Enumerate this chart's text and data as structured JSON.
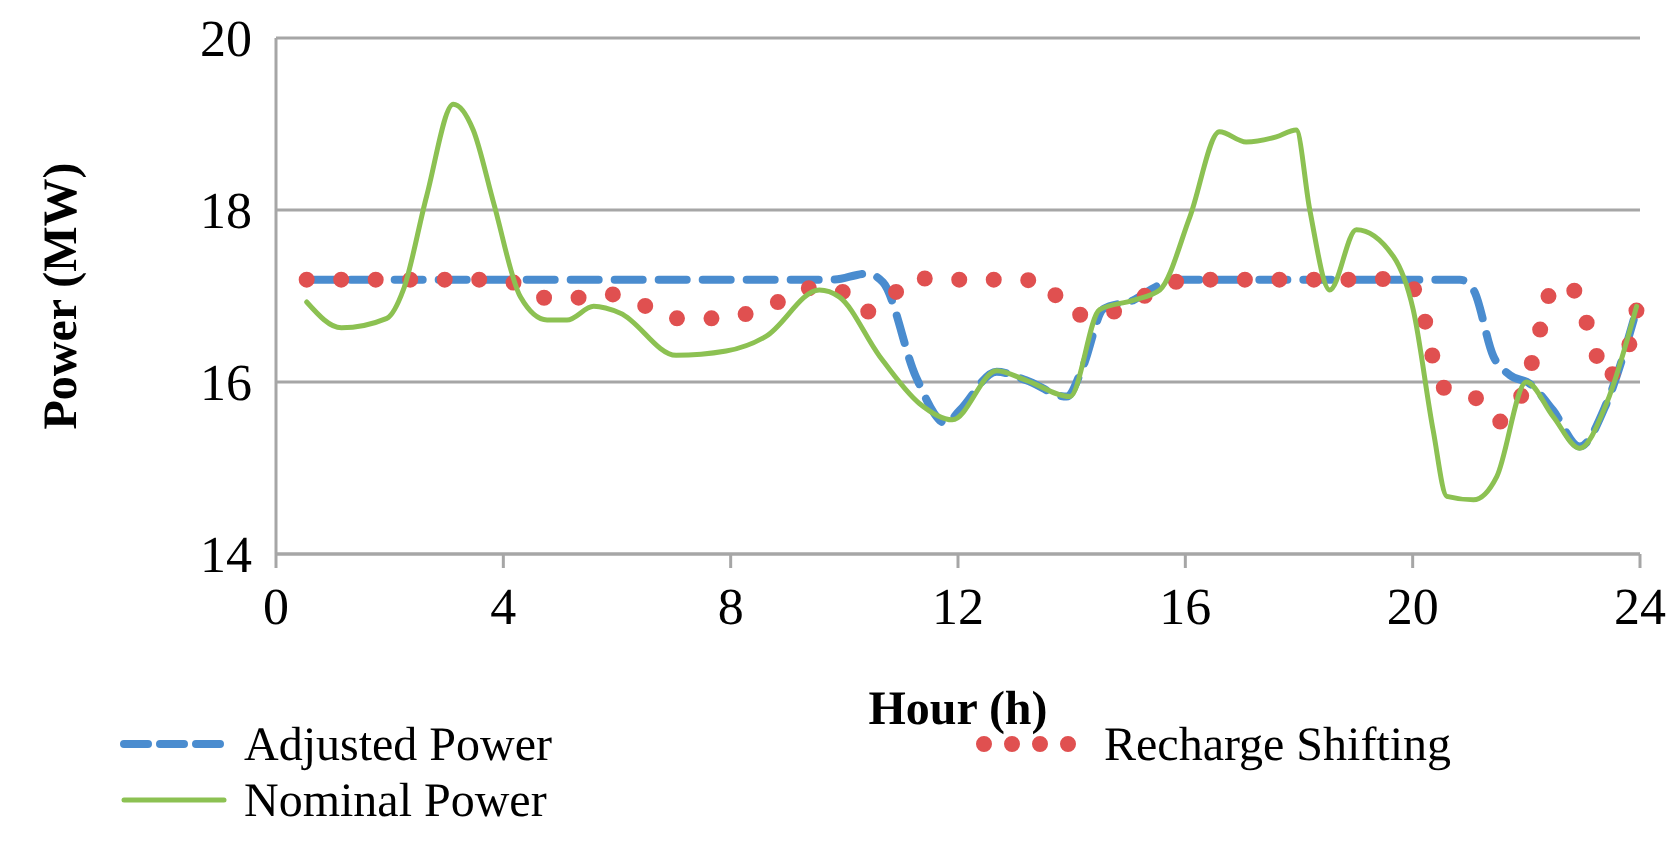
{
  "chart_data": {
    "type": "line",
    "xlabel": "Hour (h)",
    "ylabel": "Power (MW)",
    "xlim": [
      0,
      24
    ],
    "ylim": [
      14,
      20
    ],
    "xticks": [
      0,
      4,
      8,
      12,
      16,
      20,
      24
    ],
    "yticks": [
      14,
      16,
      18,
      20
    ],
    "grid": "y",
    "legend": "bottom",
    "marker": "none",
    "series": [
      {
        "name": "Adjusted Power",
        "color": "#4a8ccf",
        "line_style": "dashed",
        "x": [
          0.54,
          3,
          6,
          9.8,
          10.39,
          10.68,
          11.26,
          11.79,
          12.03,
          12.68,
          13.2,
          13.91,
          14.2,
          14.56,
          15.08,
          15.49,
          15.9,
          18,
          20.83,
          21.07,
          21.42,
          21.71,
          22.06,
          22.47,
          22.94,
          23.41,
          23.94
        ],
        "values": [
          17.19,
          17.19,
          17.19,
          17.19,
          17.26,
          17.16,
          16.06,
          15.52,
          15.67,
          16.12,
          16.02,
          15.83,
          16.18,
          16.85,
          16.95,
          17.11,
          17.19,
          17.19,
          17.19,
          17.07,
          16.3,
          16.08,
          15.98,
          15.67,
          15.25,
          15.75,
          16.84
        ]
      },
      {
        "name": "Recharge Shifting",
        "color": "#e05050",
        "line_style": "dotted",
        "x": [
          0.54,
          1.15,
          1.77,
          2.38,
          2.98,
          3.56,
          4.15,
          4.7,
          5.29,
          5.88,
          6.44,
          7.01,
          7.61,
          8.2,
          8.77,
          9.31,
          9.9,
          10.33,
          10.77,
          11.19,
          11.78,
          12.39,
          12.99,
          13.56,
          13.89,
          14.4,
          15,
          15.52,
          16.1,
          16.7,
          17.29,
          17.9,
          18.52,
          19.11,
          19.66,
          20.09,
          20.24,
          20.36,
          20.6,
          21.12,
          21.53,
          21.91,
          22.1,
          22.24,
          22.38,
          22.73,
          23.01,
          23.2,
          23.35,
          23.82,
          23.94
        ],
        "values": [
          17.19,
          17.19,
          17.19,
          17.19,
          17.19,
          17.19,
          17.16,
          16.98,
          16.98,
          17.02,
          16.9,
          16.74,
          16.74,
          16.78,
          16.91,
          17.09,
          17.07,
          16.81,
          16.95,
          17.21,
          17.19,
          17.19,
          17.19,
          17.16,
          16.82,
          16.77,
          16.89,
          17.09,
          17.19,
          17.19,
          17.19,
          17.19,
          17.19,
          17.19,
          17.2,
          17.03,
          16.64,
          16.27,
          15.9,
          15.81,
          15.54,
          15.84,
          16.23,
          16.6,
          16.99,
          17.15,
          16.78,
          16.41,
          16.04,
          16.45,
          16.84
        ]
      },
      {
        "name": "Nominal Power",
        "color": "#8cc152",
        "line_style": "solid",
        "x": [
          0.54,
          1.15,
          1.95,
          2.24,
          2.65,
          3.12,
          3.47,
          3.83,
          4.3,
          4.77,
          5.12,
          5.59,
          6.06,
          7.04,
          7.92,
          8.62,
          9.56,
          9.91,
          10.62,
          11.32,
          11.9,
          12.68,
          13.2,
          13.97,
          14.49,
          15.08,
          15.55,
          16.08,
          16.6,
          17.07,
          17.6,
          17.95,
          18.19,
          18.54,
          19.01,
          19.66,
          20.01,
          20.36,
          20.6,
          21.07,
          21.48,
          22,
          22.47,
          22.94,
          23.41,
          23.94
        ],
        "values": [
          16.93,
          16.63,
          16.74,
          17.07,
          18.16,
          19.23,
          18.93,
          18.08,
          16.99,
          16.72,
          16.72,
          16.88,
          16.8,
          16.31,
          16.36,
          16.53,
          17.07,
          16.99,
          16.3,
          15.75,
          15.56,
          16.13,
          16.02,
          15.83,
          16.84,
          16.95,
          17.07,
          17.92,
          18.91,
          18.79,
          18.85,
          18.93,
          18,
          17.07,
          17.77,
          17.46,
          16.84,
          15.44,
          14.67,
          14.63,
          14.9,
          16,
          15.6,
          15.23,
          15.75,
          16.88
        ]
      }
    ]
  }
}
